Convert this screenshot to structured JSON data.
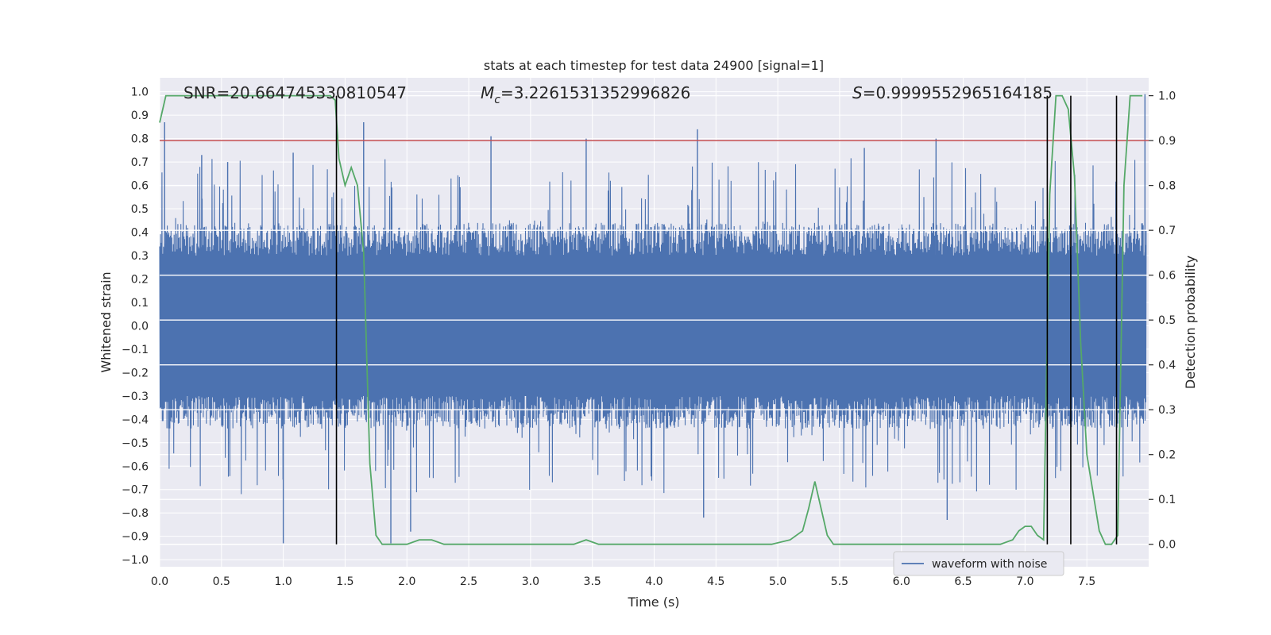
{
  "chart_data": {
    "type": "line",
    "title": "stats at each timestep for test data 24900 [signal=1]",
    "xlabel": "Time (s)",
    "ylabel": "Whitened strain",
    "y2label": "Detection probability",
    "xlim": [
      0.0,
      8.0
    ],
    "ylim": [
      -1.03,
      1.06
    ],
    "y2lim": [
      -0.05,
      1.04
    ],
    "x_ticks": [
      "0.0",
      "0.5",
      "1.0",
      "1.5",
      "2.0",
      "2.5",
      "3.0",
      "3.5",
      "4.0",
      "4.5",
      "5.0",
      "5.5",
      "6.0",
      "6.5",
      "7.0",
      "7.5"
    ],
    "y_ticks": [
      "1.0",
      "0.9",
      "0.8",
      "0.7",
      "0.6",
      "0.5",
      "0.4",
      "0.3",
      "0.2",
      "0.1",
      "0.0",
      "−0.1",
      "−0.2",
      "−0.3",
      "−0.4",
      "−0.5",
      "−0.6",
      "−0.7",
      "−0.8",
      "−0.9",
      "−1.0"
    ],
    "y2_ticks": [
      "1.0",
      "0.9",
      "0.8",
      "0.7",
      "0.6",
      "0.5",
      "0.4",
      "0.3",
      "0.2",
      "0.1",
      "0.0"
    ],
    "annotations": {
      "snr": "SNR=20.664745330810547",
      "mc_symbol": "M",
      "mc_sub": "c",
      "mc_value": "=3.2261531352996826",
      "s_symbol": "S",
      "s_value": "=0.9999552965164185"
    },
    "legend": {
      "label": "waveform with noise",
      "placement": "lower-right"
    },
    "threshold": {
      "axis": "secondary",
      "value": 0.9,
      "color": "#c44e52"
    },
    "vlines": {
      "x": [
        1.43,
        7.18,
        7.37,
        7.74
      ],
      "y_range_secondary": [
        0.0,
        1.0
      ],
      "color": "#000000"
    },
    "series": [
      {
        "name": "waveform with noise",
        "axis": "primary",
        "color": "#4c72b0",
        "style": "noise",
        "note_range": [
          -0.93,
          0.99
        ],
        "spikes": [
          [
            0.04,
            0.87
          ],
          [
            0.34,
            0.73
          ],
          [
            0.55,
            0.7
          ],
          [
            1.0,
            -0.93
          ],
          [
            1.08,
            0.74
          ],
          [
            1.65,
            0.87
          ],
          [
            1.87,
            -0.93
          ],
          [
            2.03,
            -0.88
          ],
          [
            2.68,
            0.81
          ],
          [
            3.45,
            0.8
          ],
          [
            4.35,
            0.84
          ],
          [
            4.4,
            -0.82
          ],
          [
            5.7,
            0.76
          ],
          [
            6.28,
            0.8
          ],
          [
            6.37,
            -0.83
          ],
          [
            7.97,
            0.99
          ]
        ]
      },
      {
        "name": "detection probability",
        "axis": "secondary",
        "color": "#55a868",
        "x": [
          0.0,
          0.05,
          0.1,
          0.3,
          0.5,
          0.7,
          0.9,
          1.1,
          1.3,
          1.38,
          1.42,
          1.45,
          1.5,
          1.55,
          1.6,
          1.65,
          1.7,
          1.75,
          1.8,
          1.9,
          2.0,
          2.1,
          2.2,
          2.3,
          2.4,
          2.6,
          2.8,
          3.0,
          3.2,
          3.35,
          3.45,
          3.55,
          3.7,
          3.9,
          4.2,
          4.5,
          4.8,
          4.95,
          5.1,
          5.2,
          5.25,
          5.3,
          5.35,
          5.4,
          5.45,
          5.5,
          5.6,
          5.7,
          5.8,
          6.0,
          6.1,
          6.2,
          6.3,
          6.5,
          6.8,
          6.9,
          6.95,
          7.0,
          7.05,
          7.1,
          7.15,
          7.2,
          7.25,
          7.3,
          7.35,
          7.4,
          7.45,
          7.5,
          7.6,
          7.65,
          7.7,
          7.75,
          7.8,
          7.85,
          7.9,
          7.95
        ],
        "y": [
          0.94,
          1.0,
          1.0,
          1.0,
          1.0,
          1.0,
          1.0,
          1.0,
          1.0,
          1.0,
          0.99,
          0.86,
          0.8,
          0.84,
          0.8,
          0.65,
          0.18,
          0.02,
          0.0,
          0.0,
          0.0,
          0.01,
          0.01,
          0.0,
          0.0,
          0.0,
          0.0,
          0.0,
          0.0,
          0.0,
          0.01,
          0.0,
          0.0,
          0.0,
          0.0,
          0.0,
          0.0,
          0.0,
          0.01,
          0.03,
          0.08,
          0.14,
          0.08,
          0.02,
          0.0,
          0.0,
          0.0,
          0.0,
          0.0,
          0.0,
          0.0,
          0.0,
          0.0,
          0.0,
          0.0,
          0.01,
          0.03,
          0.04,
          0.04,
          0.02,
          0.01,
          0.78,
          1.0,
          1.0,
          0.97,
          0.82,
          0.45,
          0.2,
          0.03,
          0.0,
          0.0,
          0.02,
          0.8,
          1.0,
          1.0,
          1.0
        ]
      }
    ],
    "grid": true,
    "colors": {
      "plot_bg": "#eaeaf2",
      "grid": "#ffffff",
      "waveform": "#4c72b0",
      "probability": "#55a868",
      "threshold": "#c44e52",
      "vline": "#000000"
    }
  }
}
